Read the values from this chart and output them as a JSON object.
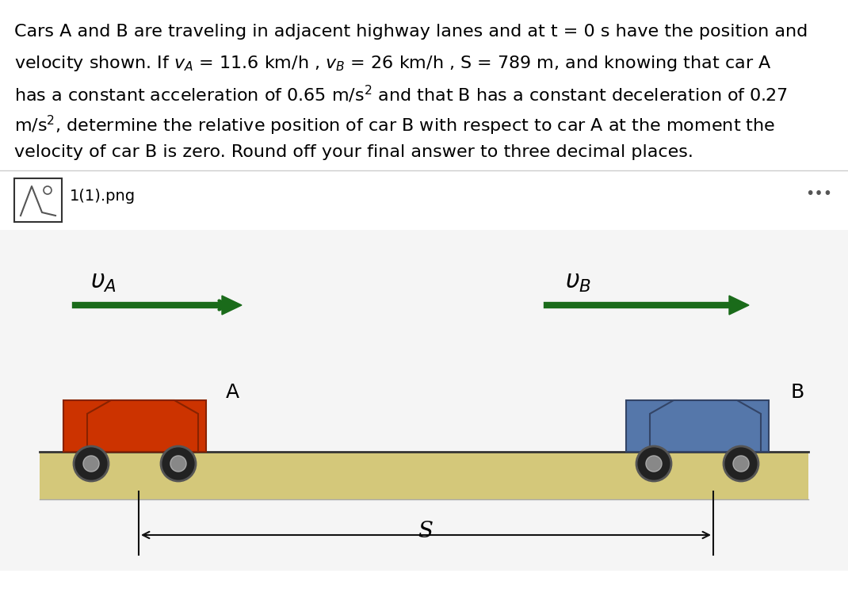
{
  "background_color": "#ffffff",
  "text_color": "#000000",
  "paragraph_lines": [
    "Cars A and B are traveling in adjacent highway lanes and at t = 0 s have the position and",
    "velocity shown. If vₐ = 11.6 km/h , vₙ = 26 km/h , S = 789 m, and knowing that car A",
    "has a constant acceleration of 0.65 m/s² and that B has a constant deceleration of 0.27",
    "m/s², determine the relative position of car B with respect to car A at the moment the",
    "velocity of car B is zero. Round off your final answer to three decimal places."
  ],
  "image_placeholder_text": "1(1).png",
  "dots_text": "•••",
  "vA_label": "v_A",
  "vB_label": "v_B",
  "car_A_label": "A",
  "car_B_label": "B",
  "S_label": "S",
  "arrow_color": "#1a6b1a",
  "road_color": "#d4c87a",
  "road_border_color": "#555555",
  "separator_line_color": "#cccccc",
  "font_size_paragraph": 16,
  "font_size_labels": 18,
  "font_size_image_label": 14
}
